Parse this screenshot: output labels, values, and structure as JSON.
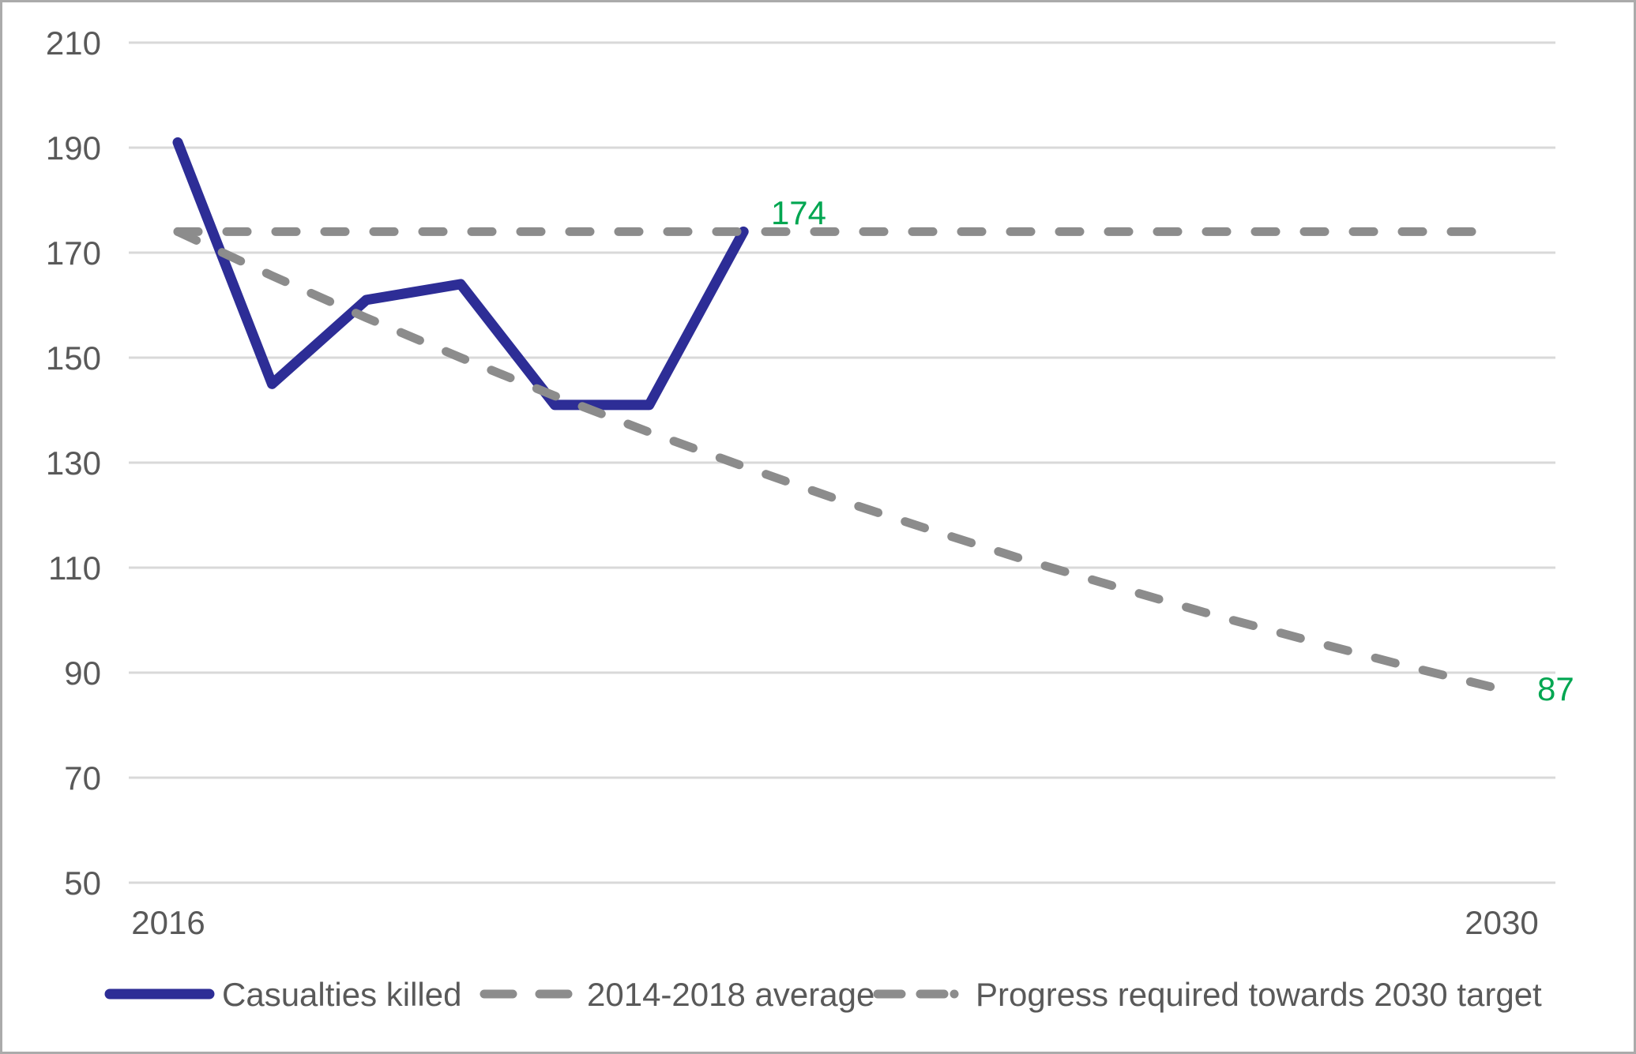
{
  "chart_data": {
    "type": "line",
    "title": "",
    "x_tick_labels": [
      "2016",
      "2030"
    ],
    "x_range": [
      2016,
      2030
    ],
    "y_ticks": [
      210,
      190,
      170,
      150,
      130,
      110,
      90,
      70,
      50
    ],
    "ylim": [
      50,
      210
    ],
    "grid": "horizontal-only",
    "legend_position": "bottom",
    "series": [
      {
        "name": "Casualties killed",
        "style": "solid",
        "color": "#2D2D96",
        "x": [
          2016,
          2017,
          2018,
          2019,
          2020,
          2021,
          2022
        ],
        "values": [
          191,
          145,
          161,
          164,
          141,
          141,
          174
        ]
      },
      {
        "name": "2014-2018 average",
        "style": "dashed",
        "color": "#8C8C8C",
        "x": [
          2016,
          2030
        ],
        "values": [
          174,
          174
        ]
      },
      {
        "name": "Progress required towards 2030 target",
        "style": "dashed",
        "color": "#8C8C8C",
        "x": [
          2016,
          2017,
          2018,
          2019,
          2020,
          2021,
          2022,
          2023,
          2024,
          2025,
          2026,
          2027,
          2028,
          2029,
          2030
        ],
        "values": [
          174,
          165.6,
          157.6,
          150.0,
          142.7,
          135.8,
          129.3,
          123.0,
          117.1,
          111.4,
          106.1,
          100.9,
          96.1,
          91.4,
          87
        ]
      }
    ],
    "annotations": [
      {
        "text": "174",
        "color": "#00A651"
      },
      {
        "text": "87",
        "color": "#00A651"
      }
    ]
  },
  "colors": {
    "casualties_line": "#2D2D96",
    "dashed_lines": "#8C8C8C",
    "annotation_green": "#00A651",
    "gridline": "#D9D9D9",
    "axis_text": "#595959",
    "frame_border": "#ABABAB",
    "background": "#FFFFFF"
  }
}
